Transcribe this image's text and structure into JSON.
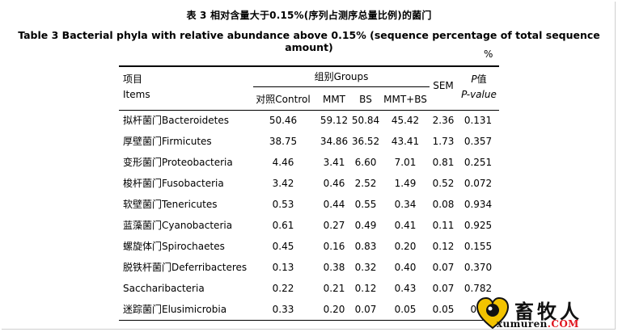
{
  "title_cn": "表 3 相对含量大于0.15%(序列占测序总量比例)的菌门",
  "title_en": "Table 3 Bacterial phyla with relative abundance above 0.15% (sequence percentage of total sequence amount)",
  "unit": "%",
  "header": {
    "items_cn": "项目",
    "items_en": "Items",
    "groups": "组别Groups",
    "sub": [
      "对照Control",
      "MMT",
      "BS",
      "MMT+BS"
    ],
    "sem": "SEM",
    "p_italic": "P",
    "p_cn": "值",
    "p_en": "P-value"
  },
  "rows": [
    {
      "name": "拟杆菌门Bacteroidetes",
      "v": [
        "50.46",
        "59.12",
        "50.84",
        "45.42",
        "2.36",
        "0.131"
      ]
    },
    {
      "name": "厚壁菌门Firmicutes",
      "v": [
        "38.75",
        "34.86",
        "36.52",
        "43.41",
        "1.73",
        "0.357"
      ]
    },
    {
      "name": "变形菌门Proteobacteria",
      "v": [
        "4.46",
        "3.41",
        "6.60",
        "7.01",
        "0.81",
        "0.251"
      ]
    },
    {
      "name": "梭杆菌门Fusobacteria",
      "v": [
        "3.42",
        "0.46",
        "2.52",
        "1.49",
        "0.52",
        "0.072"
      ]
    },
    {
      "name": "软壁菌门Tenericutes",
      "v": [
        "0.53",
        "0.44",
        "0.55",
        "0.34",
        "0.08",
        "0.934"
      ]
    },
    {
      "name": "蓝藻菌门Cyanobacteria",
      "v": [
        "0.61",
        "0.27",
        "0.49",
        "0.41",
        "0.11",
        "0.925"
      ]
    },
    {
      "name": "螺旋体门Spirochaetes",
      "v": [
        "0.45",
        "0.16",
        "0.83",
        "0.20",
        "0.12",
        "0.155"
      ]
    },
    {
      "name": "脱铁杆菌门Deferribacteres",
      "v": [
        "0.13",
        "0.38",
        "0.32",
        "0.40",
        "0.07",
        "0.370"
      ]
    },
    {
      "name": "Saccharibacteria",
      "v": [
        "0.22",
        "0.21",
        "0.12",
        "0.43",
        "0.07",
        "0.782"
      ]
    },
    {
      "name": "迷踪菌门Elusimicrobia",
      "v": [
        "0.33",
        "0.20",
        "0.07",
        "0.05",
        "0.05",
        "0.0"
      ]
    }
  ],
  "logo": {
    "cn": "畜牧人",
    "en_main": "xumuren",
    "en_accent": ".COM"
  }
}
